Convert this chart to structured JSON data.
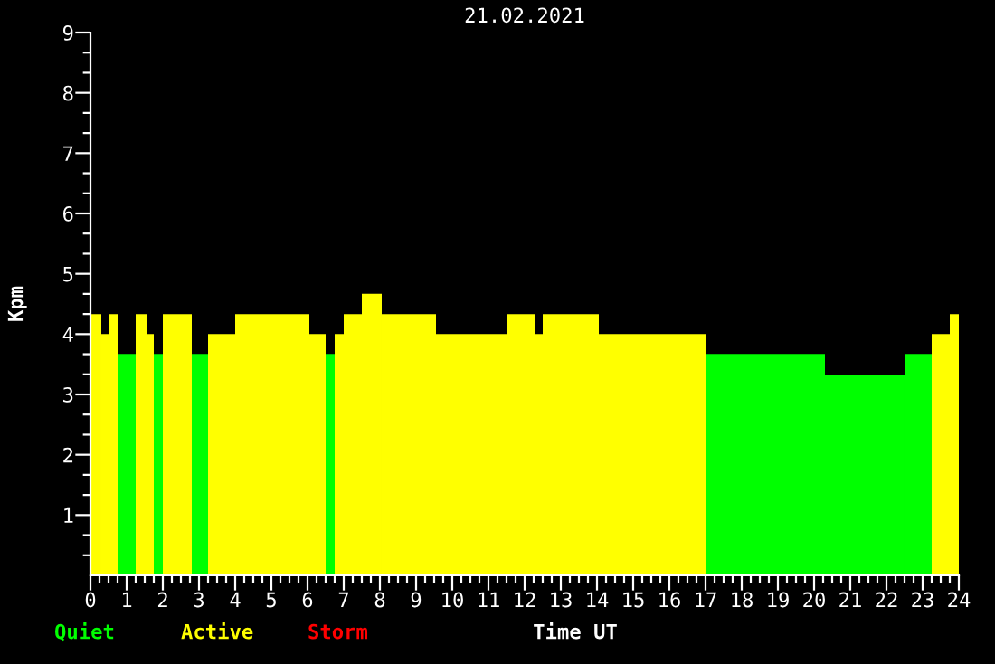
{
  "chart_data": {
    "type": "histogram",
    "title": "21.02.2021",
    "xlabel": "Time UT",
    "ylabel": "Kpm",
    "bins": [
      0,
      0.3,
      0.5,
      0.75,
      1.25,
      1.55,
      1.75,
      2.0,
      2.8,
      3.25,
      4.0,
      6.05,
      6.5,
      6.75,
      7.0,
      7.5,
      8.05,
      9.55,
      11.5,
      12.3,
      12.5,
      14.05,
      17.0,
      20.3,
      22.5,
      23.25,
      23.75,
      24
    ],
    "series": [
      {
        "name": "Quiet",
        "color": "#00ff00",
        "values": [
          null,
          null,
          null,
          3.67,
          null,
          null,
          3.67,
          null,
          3.67,
          null,
          null,
          null,
          3.67,
          null,
          null,
          null,
          null,
          null,
          null,
          null,
          null,
          null,
          3.67,
          3.33,
          3.67,
          null,
          null
        ]
      },
      {
        "name": "Active",
        "color": "#ffff00",
        "values": [
          4.33,
          4.0,
          4.33,
          null,
          4.33,
          4.0,
          null,
          4.33,
          null,
          4.0,
          4.33,
          4.0,
          null,
          4.0,
          4.33,
          4.67,
          4.33,
          4.0,
          4.33,
          4.0,
          4.33,
          4.0,
          null,
          null,
          null,
          4.0,
          4.33
        ]
      }
    ],
    "annotations": [
      "Storm"
    ],
    "xlim": [
      0,
      24
    ],
    "ylim": [
      0,
      9
    ],
    "xticks": [
      0,
      {
        "value": 0.25,
        "label": null
      },
      {
        "value": 0.5,
        "label": null
      },
      {
        "value": 0.75,
        "label": null
      },
      1,
      {
        "value": 1.25,
        "label": null
      },
      {
        "value": 1.5,
        "label": null
      },
      {
        "value": 1.75,
        "label": null
      },
      2,
      {
        "value": 2.25,
        "label": null
      },
      {
        "value": 2.5,
        "label": null
      },
      {
        "value": 2.75,
        "label": null
      },
      3,
      {
        "value": 3.25,
        "label": null
      },
      {
        "value": 3.5,
        "label": null
      },
      {
        "value": 3.75,
        "label": null
      },
      4,
      {
        "value": 4.25,
        "label": null
      },
      {
        "value": 4.5,
        "label": null
      },
      {
        "value": 4.75,
        "label": null
      },
      5,
      {
        "value": 5.25,
        "label": null
      },
      {
        "value": 5.5,
        "label": null
      },
      {
        "value": 5.75,
        "label": null
      },
      6,
      {
        "value": 6.25,
        "label": null
      },
      {
        "value": 6.5,
        "label": null
      },
      {
        "value": 6.75,
        "label": null
      },
      7,
      {
        "value": 7.25,
        "label": null
      },
      {
        "value": 7.5,
        "label": null
      },
      {
        "value": 7.75,
        "label": null
      },
      8,
      {
        "value": 8.25,
        "label": null
      },
      {
        "value": 8.5,
        "label": null
      },
      {
        "value": 8.75,
        "label": null
      },
      9,
      {
        "value": 9.25,
        "label": null
      },
      {
        "value": 9.5,
        "label": null
      },
      {
        "value": 9.75,
        "label": null
      },
      10,
      {
        "value": 10.25,
        "label": null
      },
      {
        "value": 10.5,
        "label": null
      },
      {
        "value": 10.75,
        "label": null
      },
      11,
      {
        "value": 11.25,
        "label": null
      },
      {
        "value": 11.5,
        "label": null
      },
      {
        "value": 11.75,
        "label": null
      },
      12,
      {
        "value": 12.25,
        "label": null
      },
      {
        "value": 12.5,
        "label": null
      },
      {
        "value": 12.75,
        "label": null
      },
      13,
      {
        "value": 13.25,
        "label": null
      },
      {
        "value": 13.5,
        "label": null
      },
      {
        "value": 13.75,
        "label": null
      },
      14,
      {
        "value": 14.25,
        "label": null
      },
      {
        "value": 14.5,
        "label": null
      },
      {
        "value": 14.75,
        "label": null
      },
      15,
      {
        "value": 15.25,
        "label": null
      },
      {
        "value": 15.5,
        "label": null
      },
      {
        "value": 15.75,
        "label": null
      },
      16,
      {
        "value": 16.25,
        "label": null
      },
      {
        "value": 16.5,
        "label": null
      },
      {
        "value": 16.75,
        "label": null
      },
      17,
      {
        "value": 17.25,
        "label": null
      },
      {
        "value": 17.5,
        "label": null
      },
      {
        "value": 17.75,
        "label": null
      },
      18,
      {
        "value": 18.25,
        "label": null
      },
      {
        "value": 18.5,
        "label": null
      },
      {
        "value": 18.75,
        "label": null
      },
      19,
      {
        "value": 19.25,
        "label": null
      },
      {
        "value": 19.5,
        "label": null
      },
      {
        "value": 19.75,
        "label": null
      },
      20,
      {
        "value": 20.25,
        "label": null
      },
      {
        "value": 20.5,
        "label": null
      },
      {
        "value": 20.75,
        "label": null
      },
      21,
      {
        "value": 21.25,
        "label": null
      },
      {
        "value": 21.5,
        "label": null
      },
      {
        "value": 21.75,
        "label": null
      },
      22,
      {
        "value": 22.25,
        "label": null
      },
      {
        "value": 22.5,
        "label": null
      },
      {
        "value": 22.75,
        "label": null
      },
      23,
      {
        "value": 23.25,
        "label": null
      },
      {
        "value": 23.5,
        "label": null
      },
      {
        "value": 23.75,
        "label": null
      },
      24
    ],
    "yticks": [
      {
        "value": 0.333,
        "label": null
      },
      {
        "value": 0.667,
        "label": null
      },
      1,
      {
        "value": 1.333,
        "label": null
      },
      {
        "value": 1.667,
        "label": null
      },
      2,
      {
        "value": 2.333,
        "label": null
      },
      {
        "value": 2.667,
        "label": null
      },
      3,
      {
        "value": 3.333,
        "label": null
      },
      {
        "value": 3.667,
        "label": null
      },
      4,
      {
        "value": 4.333,
        "label": null
      },
      {
        "value": 4.667,
        "label": null
      },
      5,
      {
        "value": 5.333,
        "label": null
      },
      {
        "value": 5.667,
        "label": null
      },
      6,
      {
        "value": 6.333,
        "label": null
      },
      {
        "value": 6.667,
        "label": null
      },
      7,
      {
        "value": 7.333,
        "label": null
      },
      {
        "value": 7.667,
        "label": null
      },
      8,
      {
        "value": 8.333,
        "label": null
      },
      {
        "value": 8.667,
        "label": null
      },
      9
    ],
    "grid": false,
    "legend": "bottom left"
  }
}
